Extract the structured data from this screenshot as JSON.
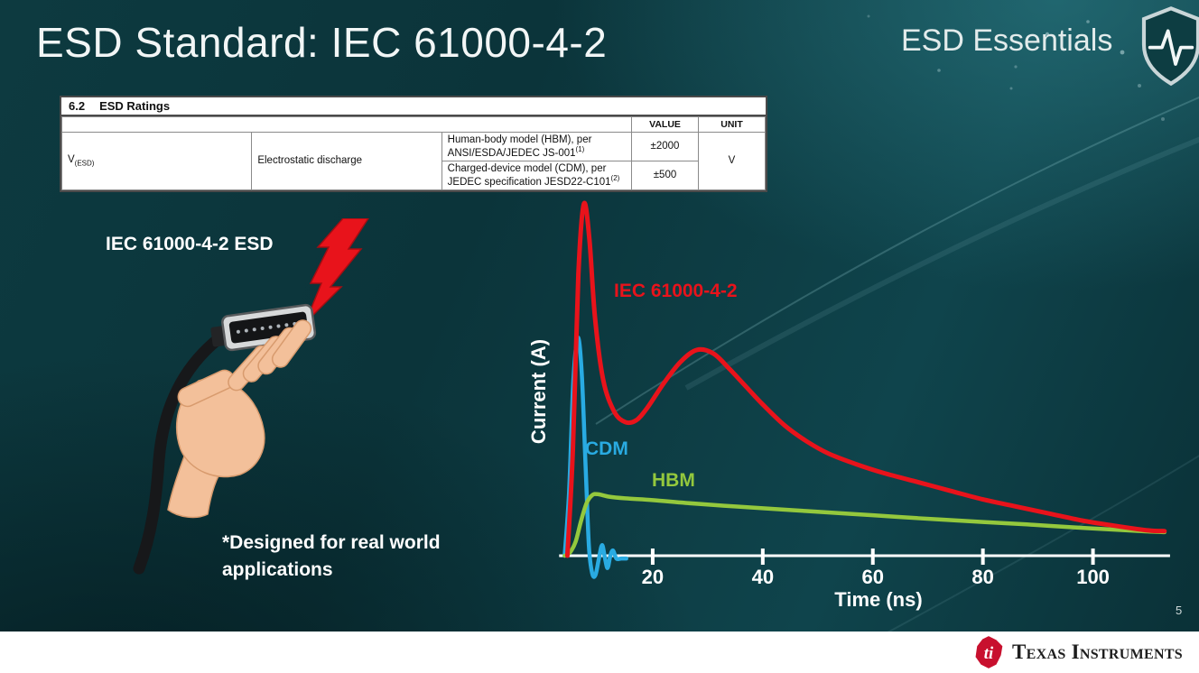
{
  "slide": {
    "title": "ESD Standard: IEC 61000-4-2",
    "series_label": "ESD Essentials",
    "iec_label": "IEC 61000-4-2 ESD",
    "footnote_line1": "*Designed for real world",
    "footnote_line2": "applications",
    "page_number": "5"
  },
  "table": {
    "caption_num": "6.2",
    "caption_text": "ESD Ratings",
    "headers": {
      "value": "VALUE",
      "unit": "UNIT"
    },
    "param_symbol": "V",
    "param_subscript": "(ESD)",
    "param_name": "Electrostatic discharge",
    "rows": [
      {
        "desc": "Human-body model (HBM), per ANSI/ESDA/JEDEC JS-001",
        "sup": "(1)",
        "value": "±2000"
      },
      {
        "desc": "Charged-device model (CDM), per JEDEC specification JESD22-C101",
        "sup": "(2)",
        "value": "±500"
      }
    ],
    "unit": "V"
  },
  "footer": {
    "brand": "Texas Instruments"
  },
  "colors": {
    "bolt_red": "#e8131b",
    "ti_red": "#c8102e",
    "background_teal": "#0b353b"
  },
  "chart_data": {
    "type": "line",
    "title": "",
    "xlabel": "Time (ns)",
    "ylabel": "Current (A)",
    "xlim": [
      0,
      115
    ],
    "ylim": [
      -0.1,
      1.0
    ],
    "xticks": [
      20,
      40,
      60,
      80,
      100
    ],
    "yticks": [],
    "grid": false,
    "legend_position": "inline-labels",
    "series": [
      {
        "name": "IEC 61000-4-2",
        "color": "#e8131b",
        "points": [
          [
            4.5,
            0
          ],
          [
            5.5,
            0.3
          ],
          [
            6.5,
            0.8
          ],
          [
            7.5,
            1.0
          ],
          [
            8.5,
            0.9
          ],
          [
            9.5,
            0.68
          ],
          [
            11,
            0.5
          ],
          [
            13,
            0.41
          ],
          [
            15,
            0.38
          ],
          [
            17,
            0.385
          ],
          [
            19,
            0.42
          ],
          [
            22,
            0.49
          ],
          [
            25,
            0.55
          ],
          [
            28,
            0.585
          ],
          [
            31,
            0.575
          ],
          [
            34,
            0.53
          ],
          [
            37,
            0.48
          ],
          [
            40,
            0.43
          ],
          [
            44,
            0.37
          ],
          [
            48,
            0.325
          ],
          [
            52,
            0.29
          ],
          [
            57,
            0.26
          ],
          [
            62,
            0.235
          ],
          [
            68,
            0.21
          ],
          [
            74,
            0.185
          ],
          [
            80,
            0.16
          ],
          [
            86,
            0.14
          ],
          [
            92,
            0.12
          ],
          [
            98,
            0.1
          ],
          [
            104,
            0.085
          ],
          [
            110,
            0.072
          ],
          [
            113,
            0.07
          ]
        ]
      },
      {
        "name": "CDM",
        "color": "#29abe2",
        "points": [
          [
            4,
            0
          ],
          [
            4.8,
            0.18
          ],
          [
            5.6,
            0.5
          ],
          [
            6.4,
            0.62
          ],
          [
            7.1,
            0.52
          ],
          [
            7.8,
            0.26
          ],
          [
            8.4,
            0.03
          ],
          [
            9.0,
            -0.05
          ],
          [
            9.6,
            -0.055
          ],
          [
            10.2,
            -0.01
          ],
          [
            10.8,
            0.03
          ],
          [
            11.3,
            -0.005
          ],
          [
            11.8,
            -0.035
          ],
          [
            12.3,
            0.0
          ],
          [
            12.8,
            0.015
          ],
          [
            13.4,
            -0.008
          ],
          [
            14.3,
            -0.008
          ],
          [
            15.2,
            -0.008
          ]
        ]
      },
      {
        "name": "HBM",
        "color": "#94c83d",
        "points": [
          [
            4,
            0
          ],
          [
            5,
            0.01
          ],
          [
            6,
            0.04
          ],
          [
            7,
            0.1
          ],
          [
            8,
            0.15
          ],
          [
            9,
            0.172
          ],
          [
            10,
            0.175
          ],
          [
            12,
            0.168
          ],
          [
            15,
            0.163
          ],
          [
            20,
            0.158
          ],
          [
            26,
            0.15
          ],
          [
            33,
            0.142
          ],
          [
            40,
            0.135
          ],
          [
            48,
            0.127
          ],
          [
            56,
            0.119
          ],
          [
            64,
            0.111
          ],
          [
            72,
            0.103
          ],
          [
            80,
            0.096
          ],
          [
            88,
            0.089
          ],
          [
            96,
            0.081
          ],
          [
            104,
            0.074
          ],
          [
            110,
            0.069
          ],
          [
            113,
            0.067
          ]
        ]
      }
    ]
  }
}
